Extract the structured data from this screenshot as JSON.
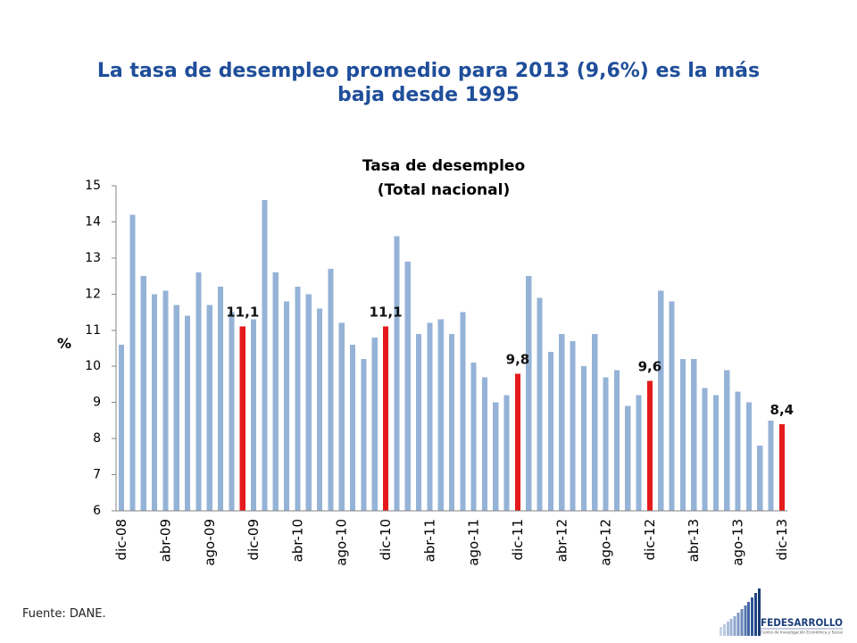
{
  "slide": {
    "title_lines": [
      "La tasa de desempleo promedio para 2013 (9,6%) es la más",
      "baja desde 1995"
    ],
    "title_color": "#1F4E9A",
    "source": "Fuente: DANE."
  },
  "chart_data": {
    "type": "bar",
    "title": "Tasa de desempleo",
    "subtitle": "(Total nacional)",
    "ylabel": "%",
    "ylim": [
      6,
      15
    ],
    "yticks": [
      6,
      7,
      8,
      9,
      10,
      11,
      12,
      13,
      14,
      15
    ],
    "x_tick_labels": [
      "dic-08",
      "abr-09",
      "ago-09",
      "dic-09",
      "abr-10",
      "ago-10",
      "dic-10",
      "abr-11",
      "ago-11",
      "dic-11",
      "abr-12",
      "ago-12",
      "dic-12",
      "abr-13",
      "ago-13",
      "dic-13"
    ],
    "series": [
      {
        "color": "#95B3D7",
        "values": [
          10.6,
          14.2,
          12.5,
          12.0,
          12.1,
          11.7,
          11.4,
          12.6,
          11.7,
          12.2,
          11.5,
          11.1,
          11.3,
          14.6,
          12.6,
          11.8,
          12.2,
          12.0,
          11.6,
          12.7,
          11.2,
          10.6,
          10.2,
          10.8,
          11.1,
          13.6,
          12.9,
          10.9,
          11.2,
          11.3,
          10.9,
          11.5,
          10.1,
          9.7,
          9.0,
          9.2,
          9.8,
          12.5,
          11.9,
          10.4,
          10.9,
          10.7,
          10.0,
          10.9,
          9.7,
          9.9,
          8.9,
          9.2,
          9.6,
          12.1,
          11.8,
          10.2,
          10.2,
          9.4,
          9.2,
          9.9,
          9.3,
          9.0,
          7.8,
          8.5,
          8.4
        ]
      }
    ],
    "highlight": {
      "color": "#E41A1C",
      "points": [
        {
          "index": 11,
          "label": "11,1"
        },
        {
          "index": 24,
          "label": "11,1"
        },
        {
          "index": 36,
          "label": "9,8"
        },
        {
          "index": 48,
          "label": "9,6"
        },
        {
          "index": 60,
          "label": "8,4"
        }
      ]
    },
    "grid": false,
    "legend": "none"
  },
  "logo": {
    "name": "FEDESARROLLO",
    "tagline": "Centro de Investigación Económica y Social"
  }
}
